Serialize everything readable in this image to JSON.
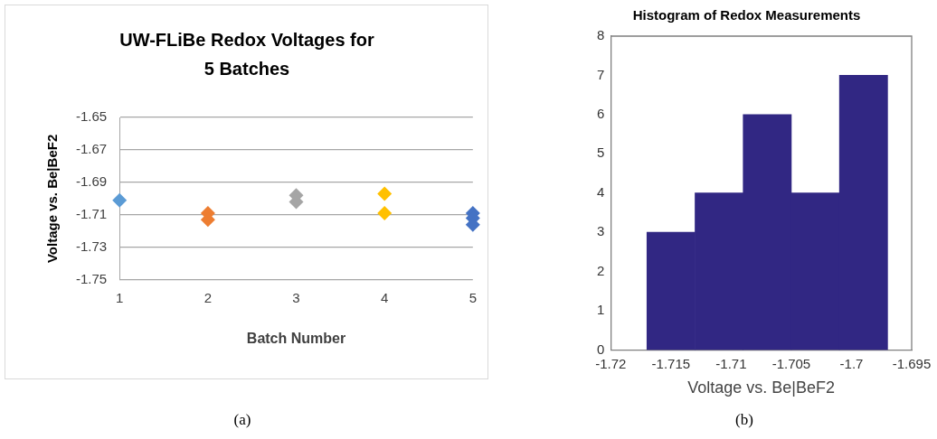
{
  "chart_data": [
    {
      "type": "scatter",
      "title": "UW-FLiBe Redox Voltages for 5 Batches",
      "xlabel": "Batch Number",
      "ylabel": "Voltage vs. Be|BeF2",
      "xlim": [
        1,
        5
      ],
      "xticks": [
        1,
        2,
        3,
        4,
        5
      ],
      "ylim": [
        -1.75,
        -1.65
      ],
      "yticks": [
        -1.65,
        -1.67,
        -1.69,
        -1.71,
        -1.73,
        -1.75
      ],
      "grid": "y",
      "marker": "diamond",
      "legend": false,
      "annotations": [
        "(a)"
      ],
      "series": [
        {
          "color": "#5b9bd5",
          "x": [
            1
          ],
          "values": [
            -1.701
          ]
        },
        {
          "color": "#ed7d31",
          "x": [
            2,
            2
          ],
          "values": [
            -1.709,
            -1.713
          ]
        },
        {
          "color": "#a5a5a5",
          "x": [
            3,
            3
          ],
          "values": [
            -1.698,
            -1.702
          ]
        },
        {
          "color": "#ffc000",
          "x": [
            4,
            4
          ],
          "values": [
            -1.697,
            -1.709
          ]
        },
        {
          "color": "#4472c4",
          "x": [
            5,
            5,
            5
          ],
          "values": [
            -1.709,
            -1.712,
            -1.716
          ]
        }
      ]
    },
    {
      "type": "histogram",
      "title": "Histogram of Redox Measurements",
      "xlabel": "Voltage vs. Be|BeF2",
      "bins": [
        -1.717,
        -1.713,
        -1.709,
        -1.705,
        -1.701,
        -1.697
      ],
      "values": [
        3,
        4,
        6,
        4,
        7
      ],
      "color": "#312783",
      "xlim": [
        -1.72,
        -1.695
      ],
      "xticks": [
        -1.72,
        -1.715,
        -1.71,
        -1.705,
        -1.7,
        -1.695
      ],
      "ylim": [
        0,
        8
      ],
      "yticks": [
        0,
        1,
        2,
        3,
        4,
        5,
        6,
        7,
        8
      ],
      "grid": false,
      "legend": false,
      "annotations": [
        "(b)"
      ]
    }
  ]
}
